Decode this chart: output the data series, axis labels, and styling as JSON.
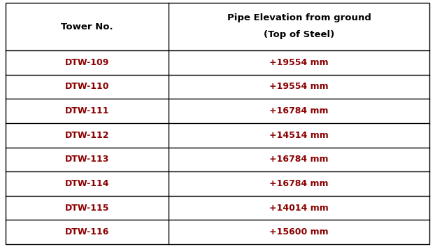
{
  "col1_header": "Tower No.",
  "col2_header_line1": "Pipe Elevation from ground",
  "col2_header_line2": "(Top of Steel)",
  "rows": [
    [
      "DTW-109",
      "+19554 mm"
    ],
    [
      "DTW-110",
      "+19554 mm"
    ],
    [
      "DTW-111",
      "+16784 mm"
    ],
    [
      "DTW-112",
      "+14514 mm"
    ],
    [
      "DTW-113",
      "+16784 mm"
    ],
    [
      "DTW-114",
      "+16784 mm"
    ],
    [
      "DTW-115",
      "+14014 mm"
    ],
    [
      "DTW-116",
      "+15600 mm"
    ]
  ],
  "text_color": "#8B0000",
  "header_text_color": "#000000",
  "line_color": "#000000",
  "background_color": "#ffffff",
  "font_size_header": 9.5,
  "font_size_data": 9,
  "col_split": 0.385
}
